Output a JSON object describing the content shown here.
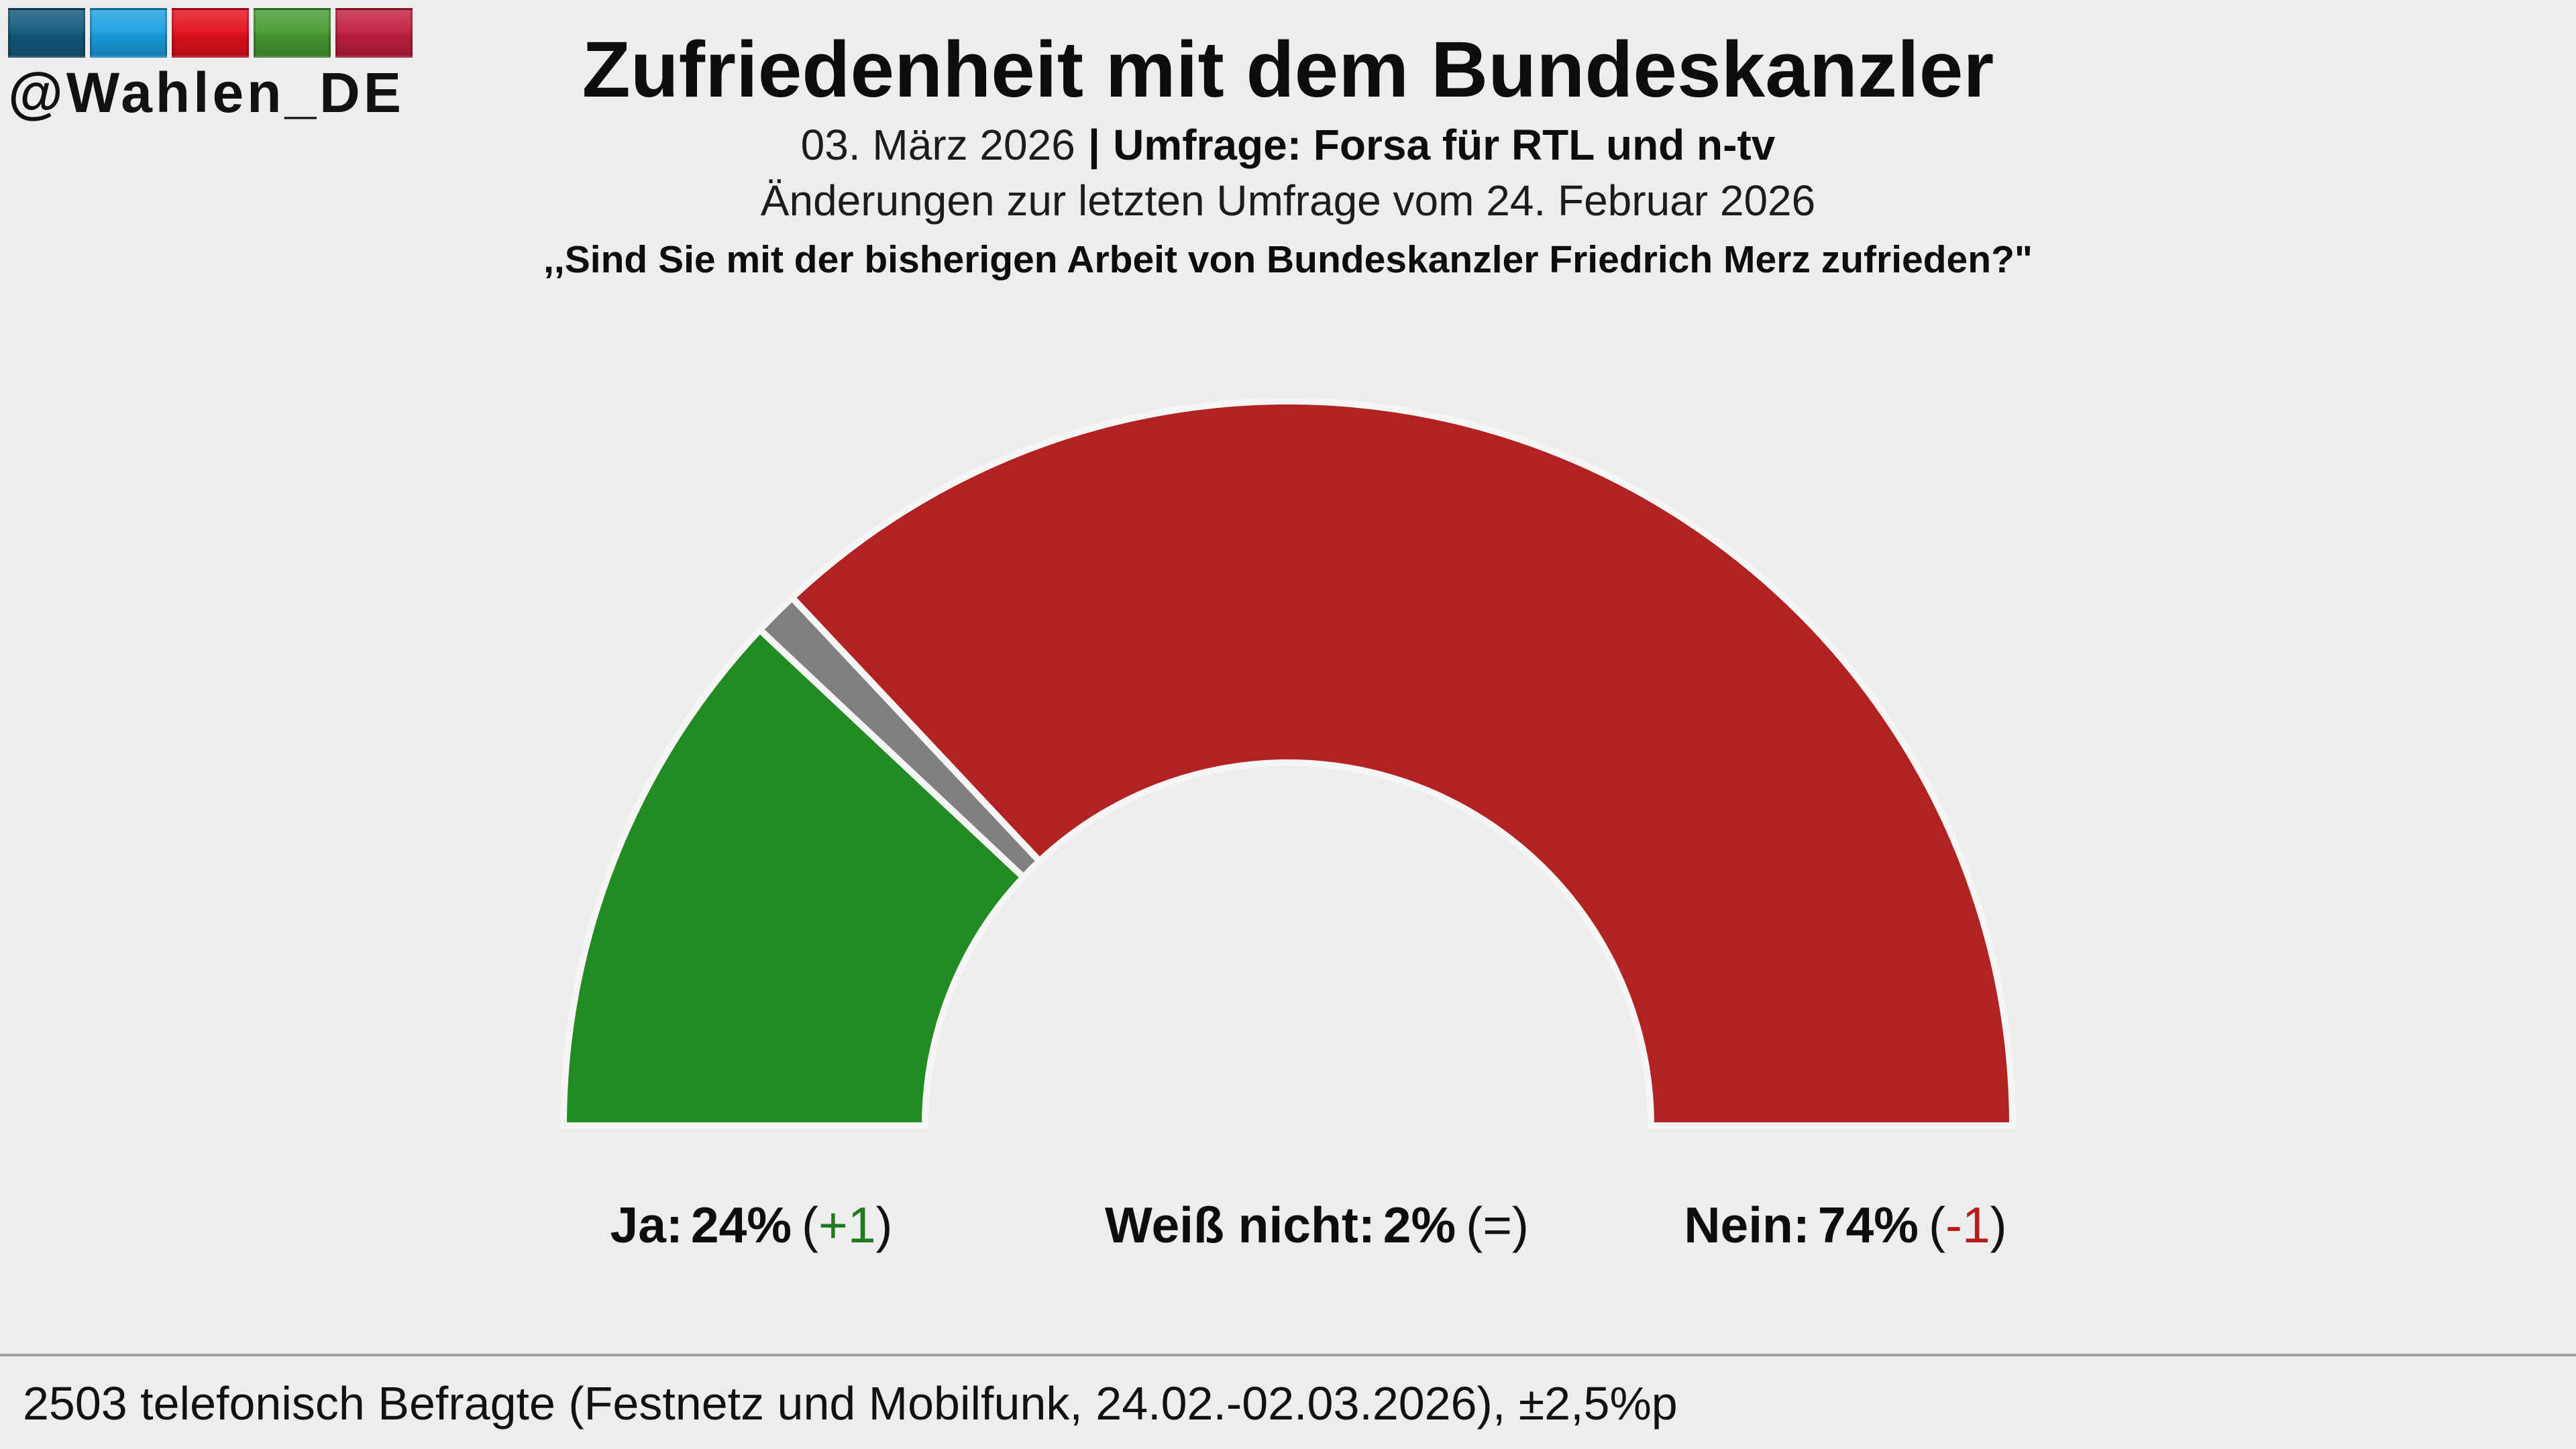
{
  "brand": {
    "handle": "@Wahlen_DE",
    "stripe_colors": [
      "#11597b",
      "#1ba0e1",
      "#e3101d",
      "#479c33",
      "#c0203f"
    ]
  },
  "colors": {
    "background": "#ededed",
    "text": "#111111",
    "divider": "#9e9e9e"
  },
  "chart_data": {
    "type": "pie",
    "variant": "half-donut",
    "title": "Zufriedenheit mit dem Bundeskanzler",
    "date": "03. März 2026",
    "separator": "|",
    "source": "Umfrage: Forsa für RTL und n-tv",
    "comparison": "Änderungen zur letzten Umfrage vom 24. Februar 2026",
    "question": ",,Sind Sie mit der bisherigen Arbeit von Bundeskanzler Friedrich Merz zufrieden?\"",
    "categories": [
      "Ja",
      "Weiß nicht",
      "Nein"
    ],
    "values": [
      24,
      2,
      74
    ],
    "unit": "%",
    "changes": [
      "+1",
      "=",
      "-1"
    ],
    "colors": [
      "#228b22",
      "#808080",
      "#b22222"
    ],
    "change_colors": [
      "#1f7a1f",
      "#111111",
      "#b71c1c"
    ],
    "footnote": "2503 telefonisch Befragte (Festnetz und Mobilfunk, 24.02.-02.03.2026), ±2,5%p"
  }
}
